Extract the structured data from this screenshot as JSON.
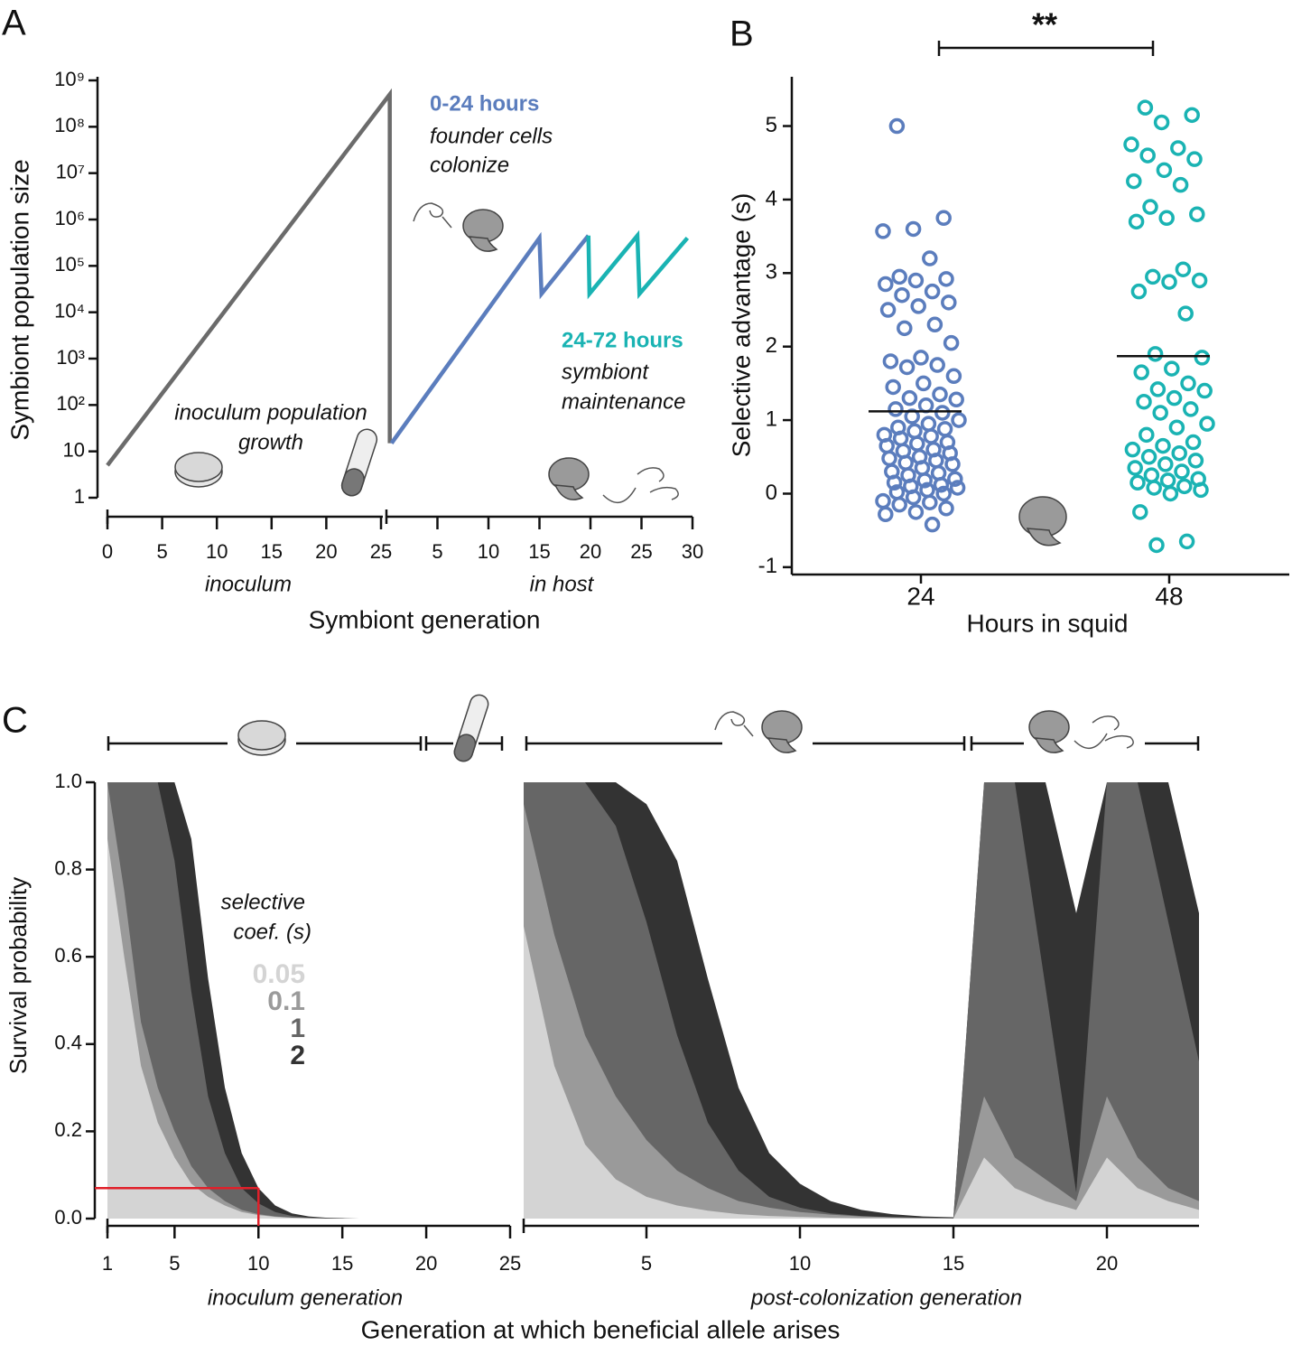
{
  "chart_data": [
    {
      "type": "line",
      "panel_label": "A",
      "ylabel": "Symbiont population size",
      "xlabel": "Symbiont generation",
      "log_y": true,
      "ylim": [
        1,
        1000000000
      ],
      "yticks": [
        1,
        10,
        {
          "value": 100,
          "label": "10²"
        },
        {
          "value": 1000,
          "label": "10³"
        },
        {
          "value": 10000,
          "label": "10⁴"
        },
        {
          "value": 100000,
          "label": "10⁵"
        },
        {
          "value": 1000000,
          "label": "10⁶"
        },
        {
          "value": 10000000,
          "label": "10⁷"
        },
        {
          "value": 100000000,
          "label": "10⁸"
        },
        {
          "value": 1000000000,
          "label": "10⁹"
        }
      ],
      "x_segments": [
        {
          "label": "inoculum",
          "xlim": [
            0,
            25.8
          ],
          "xticks": [
            0,
            5,
            10,
            15,
            20,
            25
          ]
        },
        {
          "label": "in host",
          "xlim": [
            0,
            30
          ],
          "xticks": [
            5,
            10,
            15,
            20,
            25,
            30
          ]
        }
      ],
      "series": [
        {
          "color": "#6b6b6b",
          "segment": 0,
          "x": [
            0,
            25.8,
            25.8
          ],
          "values": [
            5,
            500000000,
            15
          ]
        },
        {
          "color": "#5b7dbd",
          "segment": 1,
          "x": [
            0.5,
            15,
            15.2,
            19.8
          ],
          "values": [
            15,
            400000,
            25000,
            450000
          ]
        },
        {
          "color": "#1ab3b3",
          "segment": 1,
          "x": [
            19.8,
            19.9,
            24.6,
            24.8,
            29.5
          ],
          "values": [
            450000,
            25000,
            450000,
            25000,
            400000
          ]
        }
      ],
      "annotations": [
        {
          "lines": [
            "0-24 hours"
          ],
          "color": "#5b7dbd"
        },
        {
          "lines": [
            "founder cells",
            "colonize"
          ]
        },
        {
          "lines": [
            "24-72 hours"
          ],
          "color": "#1ab3b3"
        },
        {
          "lines": [
            "symbiont",
            "maintenance"
          ]
        },
        {
          "lines": [
            "inoculum population",
            "growth"
          ]
        }
      ]
    },
    {
      "type": "strip",
      "panel_label": "B",
      "ylabel": "Selective advantage (s)",
      "xlabel": "Hours in squid",
      "categories": [
        "24",
        "48"
      ],
      "ylim": [
        -1.1,
        5.67
      ],
      "yticks": [
        -1,
        0,
        1,
        2,
        3,
        4,
        5
      ],
      "significance": "**",
      "means": [
        1.12,
        1.87
      ],
      "series": [
        {
          "color": "#5b7dbd",
          "values": [
            5.0,
            3.75,
            3.6,
            3.57,
            3.2,
            2.95,
            2.92,
            2.9,
            2.85,
            2.75,
            2.7,
            2.6,
            2.55,
            2.5,
            2.3,
            2.25,
            2.05,
            1.85,
            1.8,
            1.75,
            1.72,
            1.6,
            1.5,
            1.45,
            1.35,
            1.3,
            1.28,
            1.2,
            1.15,
            1.1,
            1.05,
            1.0,
            0.95,
            0.9,
            0.88,
            0.85,
            0.8,
            0.78,
            0.75,
            0.7,
            0.68,
            0.65,
            0.6,
            0.58,
            0.55,
            0.5,
            0.48,
            0.45,
            0.42,
            0.4,
            0.35,
            0.3,
            0.28,
            0.25,
            0.2,
            0.18,
            0.15,
            0.12,
            0.1,
            0.08,
            0.05,
            0.02,
            0.0,
            -0.05,
            -0.1,
            -0.12,
            -0.15,
            -0.2,
            -0.25,
            -0.28,
            -0.42
          ]
        },
        {
          "color": "#1ab3b3",
          "values": [
            5.25,
            5.15,
            5.05,
            4.75,
            4.7,
            4.6,
            4.55,
            4.4,
            4.25,
            4.2,
            3.9,
            3.8,
            3.75,
            3.7,
            3.05,
            2.95,
            2.9,
            2.88,
            2.75,
            2.45,
            1.9,
            1.85,
            1.7,
            1.65,
            1.5,
            1.42,
            1.4,
            1.3,
            1.25,
            1.15,
            1.1,
            0.95,
            0.9,
            0.8,
            0.7,
            0.65,
            0.6,
            0.55,
            0.5,
            0.45,
            0.4,
            0.35,
            0.3,
            0.25,
            0.2,
            0.18,
            0.15,
            0.1,
            0.08,
            0.05,
            0.0,
            -0.25,
            -0.65,
            -0.7
          ]
        }
      ]
    },
    {
      "type": "area",
      "panel_label": "C",
      "ylabel": "Survival probability",
      "xlabel": "Generation at which beneficial allele arises",
      "ylim": [
        0,
        1
      ],
      "yticks": [
        {
          "value": 0,
          "label": "0.0"
        },
        0.2,
        0.4,
        0.6,
        0.8,
        {
          "value": 1,
          "label": "1.0"
        }
      ],
      "legend_title": [
        "selective",
        "coef. (s)"
      ],
      "x_segments": [
        {
          "label": "inoculum generation",
          "xlim": [
            1,
            25
          ],
          "xticks": [
            1,
            5,
            10,
            15,
            20,
            25
          ],
          "x": [
            1,
            2,
            3,
            4,
            5,
            6,
            7,
            8,
            9,
            10,
            11,
            12,
            13,
            14,
            15,
            16,
            17,
            18,
            19,
            20,
            21,
            22,
            23,
            24,
            25
          ]
        },
        {
          "label": "post-colonization generation",
          "xlim": [
            1,
            23
          ],
          "xticks": [
            5,
            10,
            15,
            20
          ],
          "x": [
            1,
            2,
            3,
            4,
            5,
            6,
            7,
            8,
            9,
            10,
            11,
            12,
            13,
            14,
            15,
            16,
            17,
            18,
            19,
            20,
            21,
            22,
            23
          ]
        }
      ],
      "series": [
        {
          "name": "0.05",
          "color": "#d4d4d4",
          "values": [
            [
              0.87,
              0.6,
              0.35,
              0.22,
              0.14,
              0.08,
              0.05,
              0.03,
              0.015,
              0.008,
              0.004,
              0.002,
              0.001,
              0,
              0,
              0,
              0,
              0,
              0,
              0,
              0,
              0,
              0,
              0,
              0
            ],
            [
              0.67,
              0.35,
              0.17,
              0.09,
              0.05,
              0.03,
              0.018,
              0.01,
              0.006,
              0.004,
              0.002,
              0.001,
              0.001,
              0,
              0,
              0.14,
              0.07,
              0.04,
              0.02,
              0.14,
              0.07,
              0.04,
              0.02
            ]
          ]
        },
        {
          "name": "0.1",
          "color": "#9a9a9a",
          "values": [
            [
              1,
              0.75,
              0.45,
              0.3,
              0.2,
              0.12,
              0.07,
              0.04,
              0.02,
              0.01,
              0.005,
              0.002,
              0.001,
              0,
              0,
              0,
              0,
              0,
              0,
              0,
              0,
              0,
              0,
              0,
              0
            ],
            [
              0.95,
              0.65,
              0.42,
              0.28,
              0.18,
              0.11,
              0.07,
              0.04,
              0.025,
              0.015,
              0.009,
              0.005,
              0.003,
              0.002,
              0.001,
              0.28,
              0.14,
              0.09,
              0.04,
              0.28,
              0.14,
              0.07,
              0.04
            ]
          ]
        },
        {
          "name": "1",
          "color": "#666666",
          "values": [
            [
              1,
              1,
              1,
              1,
              0.82,
              0.52,
              0.28,
              0.15,
              0.07,
              0.035,
              0.015,
              0.006,
              0.002,
              0.001,
              0,
              0,
              0,
              0,
              0,
              0,
              0,
              0,
              0,
              0,
              0
            ],
            [
              1,
              1,
              1,
              0.9,
              0.68,
              0.42,
              0.22,
              0.11,
              0.05,
              0.025,
              0.012,
              0.006,
              0.003,
              0.002,
              0.001,
              1,
              1,
              0.53,
              0.06,
              1,
              1,
              0.68,
              0.36
            ]
          ]
        },
        {
          "name": "2",
          "color": "#333333",
          "values": [
            [
              1,
              1,
              1,
              1,
              1,
              0.87,
              0.55,
              0.3,
              0.15,
              0.07,
              0.03,
              0.012,
              0.005,
              0.002,
              0.001,
              0,
              0,
              0,
              0,
              0,
              0,
              0,
              0,
              0,
              0
            ],
            [
              1,
              1,
              1,
              1,
              0.95,
              0.82,
              0.55,
              0.3,
              0.15,
              0.08,
              0.04,
              0.02,
              0.01,
              0.005,
              0.003,
              1,
              1,
              1,
              0.7,
              1,
              1,
              1,
              0.7
            ]
          ]
        }
      ],
      "highlight": {
        "x": 10,
        "y": 0.07,
        "color": "#e0202a"
      }
    }
  ]
}
